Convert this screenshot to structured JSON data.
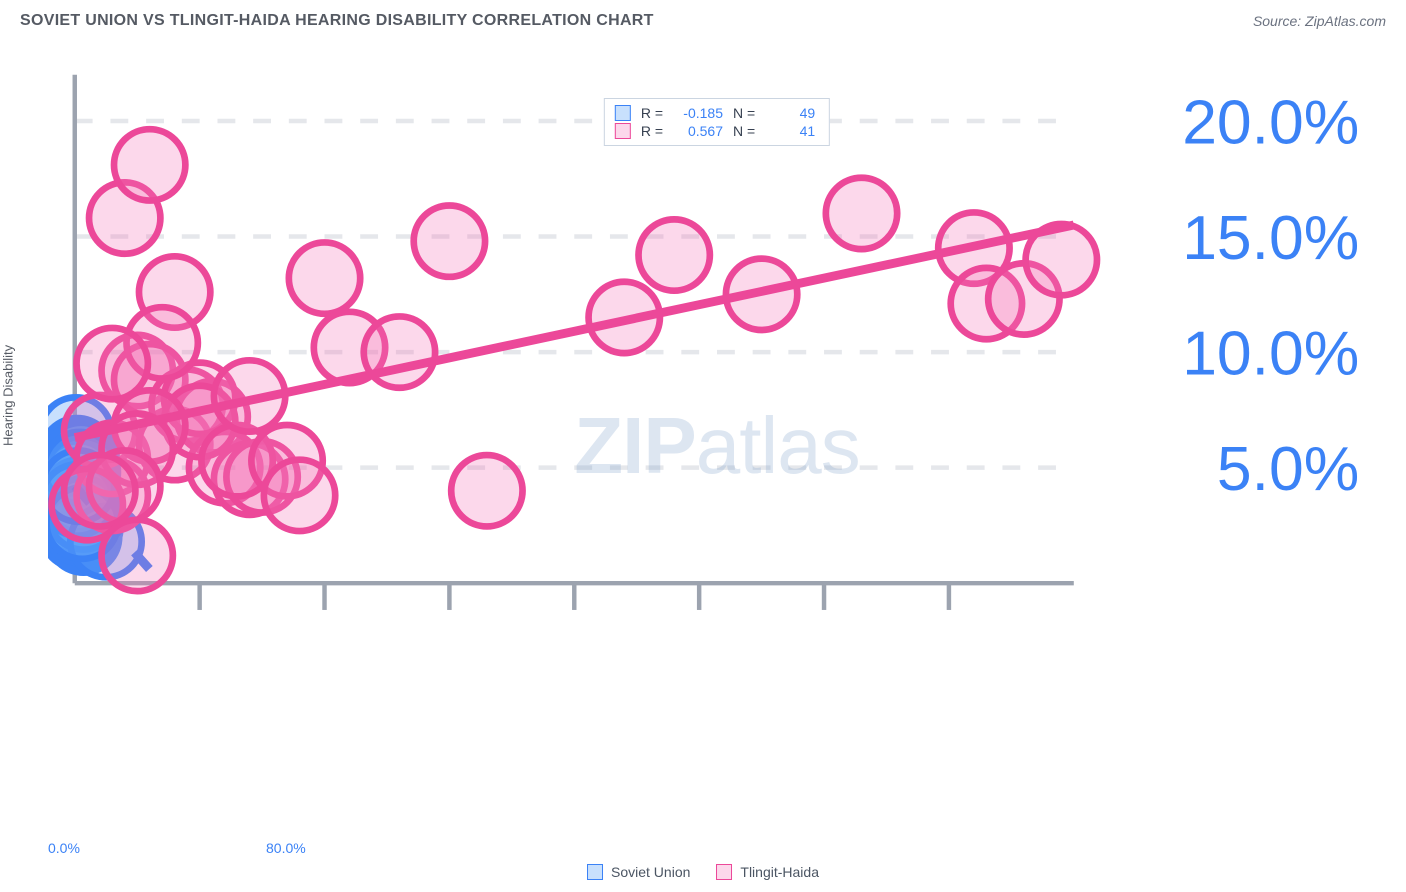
{
  "header": {
    "title": "SOVIET UNION VS TLINGIT-HAIDA HEARING DISABILITY CORRELATION CHART",
    "source_prefix": "Source: ",
    "source_name": "ZipAtlas.com"
  },
  "watermark": {
    "zip": "ZIP",
    "atlas": "atlas"
  },
  "chart": {
    "type": "scatter",
    "ylabel": "Hearing Disability",
    "xlim": [
      0,
      80
    ],
    "ylim": [
      0,
      22
    ],
    "x_tick_labels": {
      "min": "0.0%",
      "max": "80.0%"
    },
    "y_ticks": [
      5,
      10,
      15,
      20
    ],
    "y_tick_labels": [
      "5.0%",
      "10.0%",
      "15.0%",
      "20.0%"
    ],
    "grid_color": "#e5e7eb",
    "axis_color": "#9ca3af",
    "axis_label_color": "#3b82f6",
    "background": "#ffffff",
    "marker_radius": 8,
    "marker_stroke_width": 1.5,
    "trend_line_width": 2,
    "series": [
      {
        "name": "Soviet Union",
        "fill": "rgba(96,165,250,0.35)",
        "stroke": "#3b82f6",
        "R": "-0.185",
        "N": "49",
        "trend": {
          "x1": 0,
          "y1": 4.2,
          "x2": 7,
          "y2": 0,
          "dashed": true
        },
        "points": [
          [
            0.1,
            6.5
          ],
          [
            0.2,
            2.2
          ],
          [
            0.3,
            3.0
          ],
          [
            0.4,
            3.4
          ],
          [
            0.2,
            4.0
          ],
          [
            0.5,
            2.8
          ],
          [
            0.6,
            2.5
          ],
          [
            0.3,
            4.8
          ],
          [
            0.4,
            5.2
          ],
          [
            0.2,
            3.2
          ],
          [
            0.5,
            3.8
          ],
          [
            0.7,
            2.0
          ],
          [
            0.3,
            2.6
          ],
          [
            0.4,
            4.4
          ],
          [
            0.6,
            3.0
          ],
          [
            0.2,
            5.6
          ],
          [
            0.8,
            2.4
          ],
          [
            0.3,
            3.6
          ],
          [
            0.5,
            4.2
          ],
          [
            0.4,
            2.8
          ],
          [
            0.7,
            3.2
          ],
          [
            0.2,
            4.6
          ],
          [
            0.6,
            2.2
          ],
          [
            0.3,
            5.0
          ],
          [
            0.5,
            2.6
          ],
          [
            0.4,
            3.8
          ],
          [
            0.8,
            2.8
          ],
          [
            0.2,
            3.4
          ],
          [
            0.6,
            4.0
          ],
          [
            0.3,
            2.4
          ],
          [
            0.5,
            5.4
          ],
          [
            0.4,
            3.0
          ],
          [
            0.7,
            2.6
          ],
          [
            0.2,
            4.2
          ],
          [
            0.6,
            3.4
          ],
          [
            0.3,
            4.6
          ],
          [
            0.5,
            3.2
          ],
          [
            0.4,
            2.2
          ],
          [
            0.8,
            3.6
          ],
          [
            0.2,
            2.8
          ],
          [
            0.6,
            4.8
          ],
          [
            0.3,
            3.8
          ],
          [
            0.5,
            2.4
          ],
          [
            0.4,
            5.0
          ],
          [
            0.7,
            3.0
          ],
          [
            0.2,
            3.6
          ],
          [
            2.5,
            1.8
          ],
          [
            0.6,
            2.6
          ],
          [
            0.3,
            4.2
          ]
        ]
      },
      {
        "name": "Tlingit-Haida",
        "fill": "rgba(244,114,182,0.28)",
        "stroke": "#ec4899",
        "R": "0.567",
        "N": "41",
        "trend": {
          "x1": 0,
          "y1": 6.3,
          "x2": 80,
          "y2": 15.5,
          "dashed": false
        },
        "points": [
          [
            2,
            6.6
          ],
          [
            3,
            5.4
          ],
          [
            5,
            9.2
          ],
          [
            6,
            8.8
          ],
          [
            4,
            15.8
          ],
          [
            6,
            18.1
          ],
          [
            8,
            6.0
          ],
          [
            9,
            7.7
          ],
          [
            11,
            7.2
          ],
          [
            10,
            8.0
          ],
          [
            12,
            5.0
          ],
          [
            14,
            4.5
          ],
          [
            15,
            4.6
          ],
          [
            8,
            12.6
          ],
          [
            10,
            7.0
          ],
          [
            13,
            5.3
          ],
          [
            7,
            10.4
          ],
          [
            6,
            6.8
          ],
          [
            3,
            3.8
          ],
          [
            5,
            5.8
          ],
          [
            1,
            3.4
          ],
          [
            4,
            4.2
          ],
          [
            2,
            4.0
          ],
          [
            5,
            1.2
          ],
          [
            17,
            5.3
          ],
          [
            18,
            3.8
          ],
          [
            20,
            13.2
          ],
          [
            22,
            10.2
          ],
          [
            26,
            10.0
          ],
          [
            30,
            14.8
          ],
          [
            33,
            4.0
          ],
          [
            44,
            11.5
          ],
          [
            48,
            14.2
          ],
          [
            55,
            12.5
          ],
          [
            63,
            16.0
          ],
          [
            72,
            14.5
          ],
          [
            73,
            12.1
          ],
          [
            76,
            12.3
          ],
          [
            79,
            14.0
          ],
          [
            14,
            8.1
          ],
          [
            3,
            9.5
          ]
        ]
      }
    ]
  },
  "legend_top": {
    "R_label": "R =",
    "N_label": "N ="
  }
}
